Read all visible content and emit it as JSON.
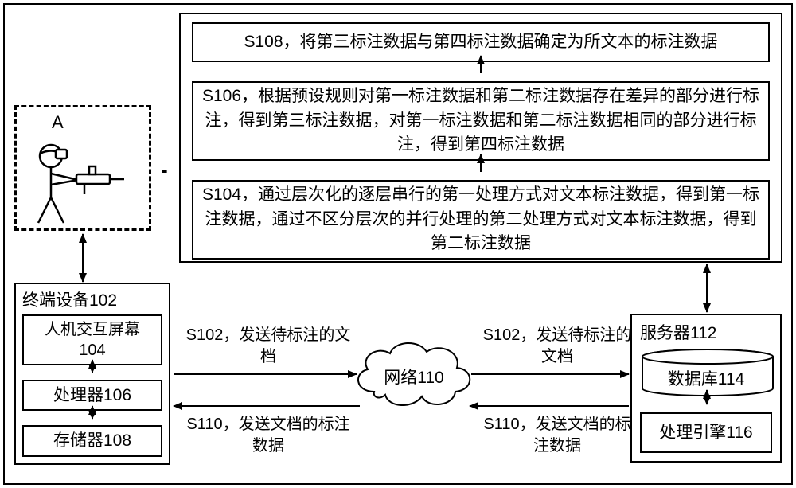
{
  "fontsize": {
    "step_text": 21,
    "label": 21,
    "sub": 21,
    "small_label": 20
  },
  "colors": {
    "stroke": "#000000",
    "background": "#ffffff"
  },
  "process": {
    "s108": "S108，将第三标注数据与第四标注数据确定为所文本的标注数据",
    "s106": "S106，根据预设规则对第一标注数据和第二标注数据存在差异的部分进行标注，得到第三标注数据，对第一标注数据和第二标注数据相同的部分进行标注，得到第四标注数据",
    "s104": "S104，通过层次化的逐层串行的第一处理方式对文本标注数据，得到第一标注数据，通过不区分层次的并行处理的第二处理方式对文本标注数据，得到第二标注数据"
  },
  "user_label": "A",
  "terminal": {
    "title": "终端设备102",
    "screen": "人机交互屏幕104",
    "processor": "处理器106",
    "memory": "存储器108"
  },
  "server": {
    "title": "服务器112",
    "database": "数据库114",
    "engine": "处理引擎116"
  },
  "network": "网络110",
  "flows": {
    "s102_left": "S102，发送待标注的文档",
    "s110_left": "S110，发送文档的标注数据",
    "s102_right": "S102，发送待标注的文档",
    "s110_right": "S110，发送文档的标注数据"
  },
  "dash_connector": "-"
}
